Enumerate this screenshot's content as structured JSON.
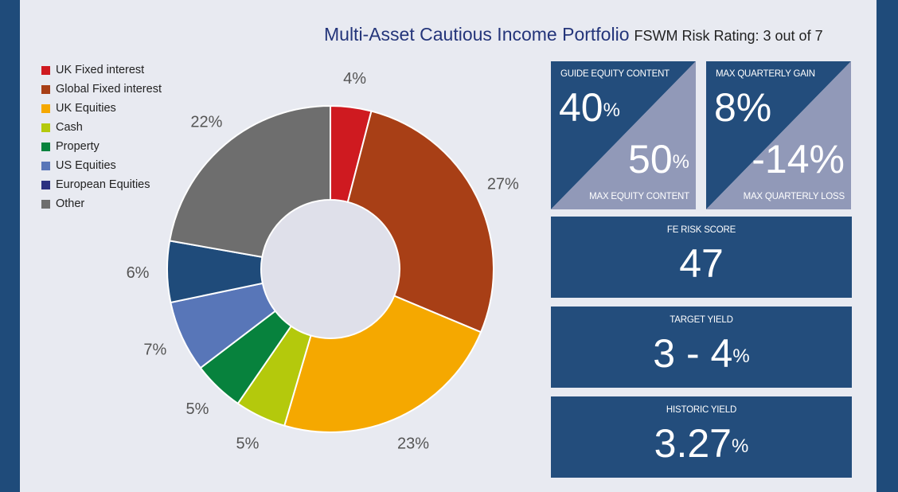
{
  "title": "Multi-Asset Cautious Income Portfolio",
  "risk_rating": "FSWM Risk Rating: 3 out of 7",
  "chart_data": {
    "type": "pie",
    "donut": true,
    "categories": [
      "UK Fixed interest",
      "Global Fixed interest",
      "UK Equities",
      "Cash",
      "Property",
      "US Equities",
      "European Equities",
      "Other"
    ],
    "values": [
      4,
      27,
      23,
      5,
      5,
      7,
      6,
      22
    ],
    "slice_labels": [
      "4%",
      "27%",
      "23%",
      "5%",
      "5%",
      "7%",
      "6%",
      "22%"
    ],
    "slice_colors": [
      "#cf1a20",
      "#a83f16",
      "#f5a800",
      "#b4c90c",
      "#07823d",
      "#5876b8",
      "#1f4b7a",
      "#6e6e6e"
    ],
    "legend_colors": [
      "#cf1a20",
      "#a83f16",
      "#f5a800",
      "#b4c90c",
      "#07823d",
      "#5876b8",
      "#2b3080",
      "#6e6e6e"
    ],
    "legend_position": "top-left"
  },
  "guide_equity": {
    "label": "GUIDE EQUITY CONTENT",
    "value": "40",
    "unit": "%",
    "bottom_value": "50",
    "bottom_unit": "%",
    "bottom_label": "MAX EQUITY CONTENT"
  },
  "quarterly": {
    "label": "MAX QUARTERLY GAIN",
    "value": "8%",
    "bottom_value": "-14%",
    "bottom_label": "MAX QUARTERLY LOSS"
  },
  "fe_risk": {
    "label": "FE RISK SCORE",
    "value": "47"
  },
  "target_yield": {
    "label": "TARGET YIELD",
    "value": "3 - 4",
    "unit": "%"
  },
  "historic_yield": {
    "label": "HISTORIC YIELD",
    "value": "3.27",
    "unit": "%"
  },
  "colors": {
    "background": "#1f4b7a",
    "panel": "#e8eaf1",
    "box_dark": "#234d7c",
    "box_light": "#9199b8",
    "title": "#24357a"
  }
}
